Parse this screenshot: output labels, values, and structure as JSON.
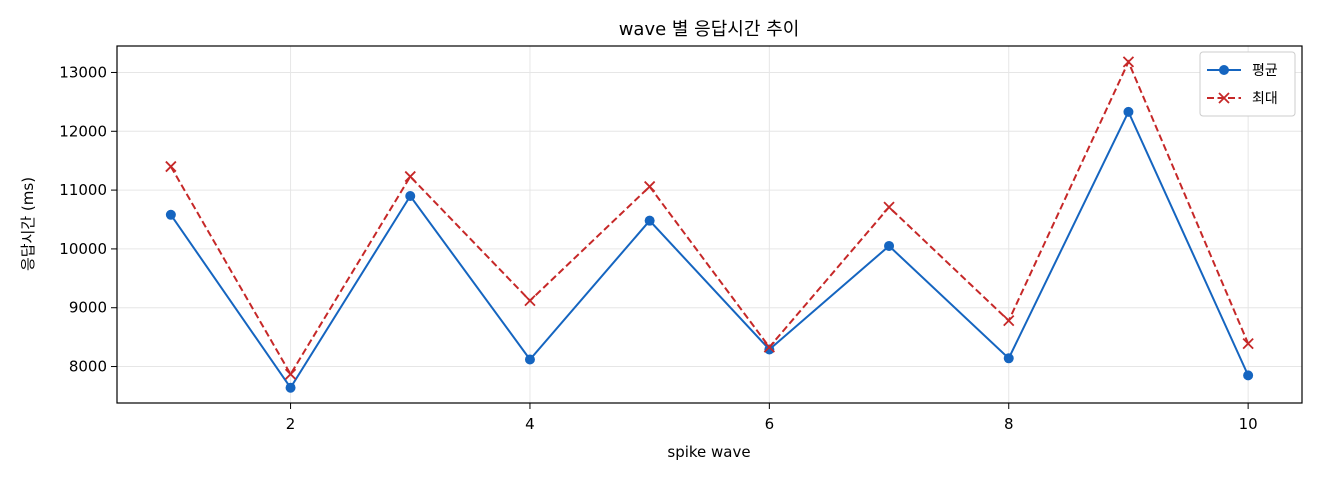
{
  "chart_data": {
    "type": "line",
    "title": "wave 별 응답시간 추이",
    "xlabel": "spike wave",
    "ylabel": "응답시간 (ms)",
    "x": [
      1,
      2,
      3,
      4,
      5,
      6,
      7,
      8,
      9,
      10
    ],
    "xlim": [
      0.55,
      10.45
    ],
    "ylim": [
      7380,
      13450
    ],
    "x_ticks": [
      2,
      4,
      6,
      8,
      10
    ],
    "y_ticks": [
      8000,
      9000,
      10000,
      11000,
      12000,
      13000
    ],
    "grid": true,
    "legend_position": "top-right",
    "series": [
      {
        "name": "평균",
        "values": [
          10580,
          7640,
          10900,
          8120,
          10480,
          8290,
          10050,
          8140,
          12330,
          7850
        ],
        "color": "#1565c0",
        "line_style": "solid",
        "marker": "circle"
      },
      {
        "name": "최대",
        "values": [
          11400,
          7870,
          11230,
          9120,
          11060,
          8330,
          10710,
          8780,
          13180,
          8390
        ],
        "color": "#c62828",
        "line_style": "dashed",
        "marker": "x"
      }
    ]
  }
}
